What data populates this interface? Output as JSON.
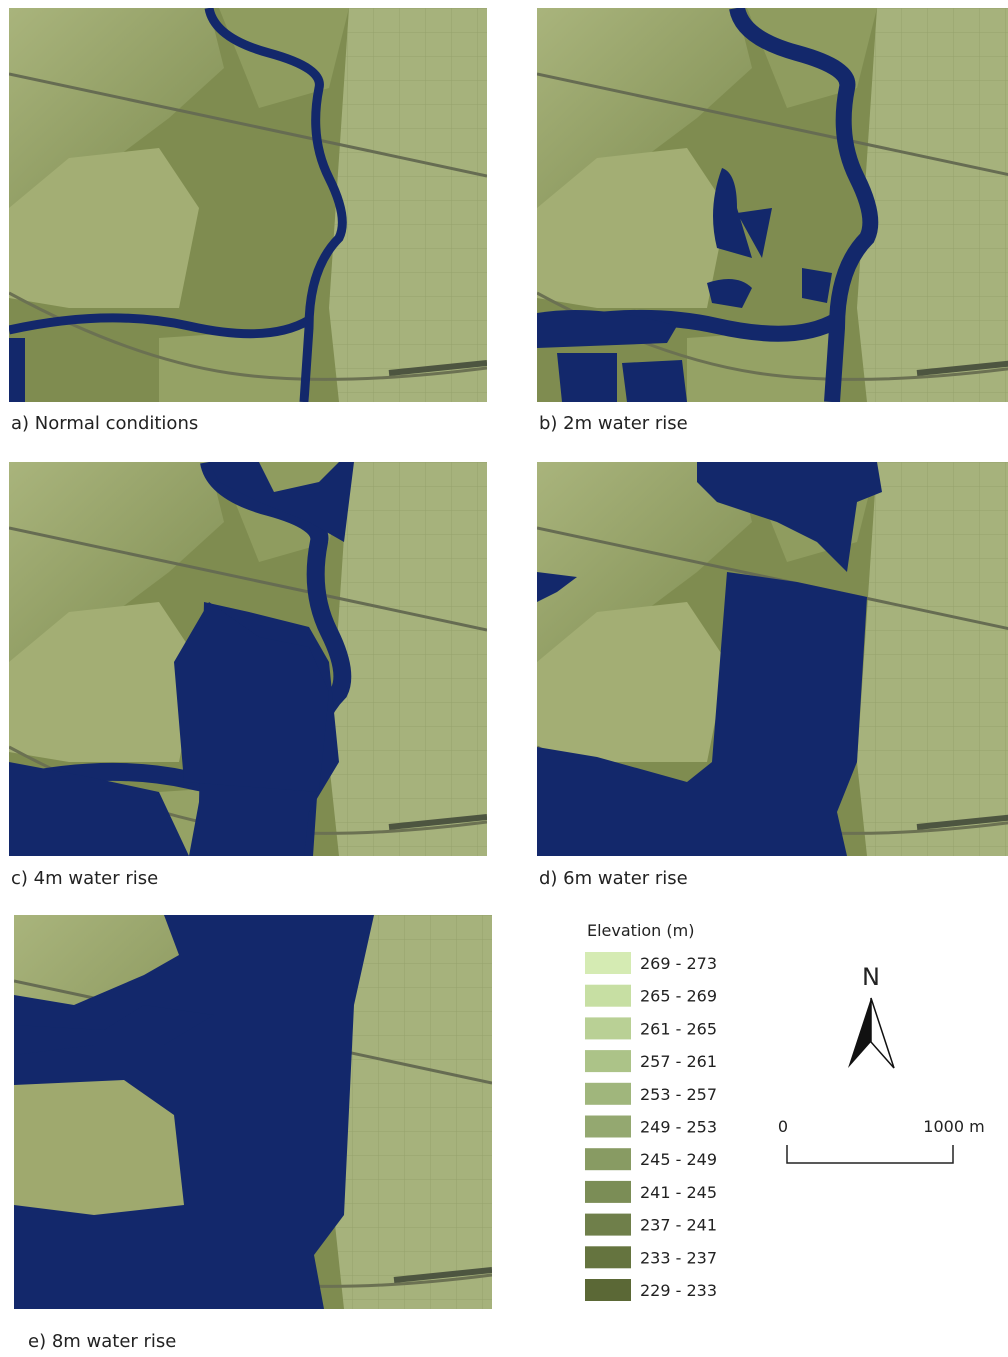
{
  "panels": [
    {
      "caption": "a) Normal conditions"
    },
    {
      "caption": "b) 2m water rise"
    },
    {
      "caption": "c) 4m water rise"
    },
    {
      "caption": "d) 6m water rise"
    },
    {
      "caption": "e) 8m water rise"
    }
  ],
  "legend": {
    "title": "Elevation (m)",
    "items": [
      {
        "label": "269 - 273",
        "color": "#d5ebb3"
      },
      {
        "label": "265 - 269",
        "color": "#c7dfa3"
      },
      {
        "label": "261 - 265",
        "color": "#b9d095"
      },
      {
        "label": "257 - 261",
        "color": "#acc388"
      },
      {
        "label": "253 - 257",
        "color": "#a0b67c"
      },
      {
        "label": "249 - 253",
        "color": "#94a870"
      },
      {
        "label": "245 - 249",
        "color": "#889b63"
      },
      {
        "label": "241 - 245",
        "color": "#7b8d56"
      },
      {
        "label": "237 - 241",
        "color": "#6f7f4a"
      },
      {
        "label": "233 - 237",
        "color": "#65743f"
      },
      {
        "label": "229 - 233",
        "color": "#5b6836"
      }
    ]
  },
  "north": "N",
  "scale_bar": {
    "labels": [
      "0",
      "1000 m"
    ]
  }
}
